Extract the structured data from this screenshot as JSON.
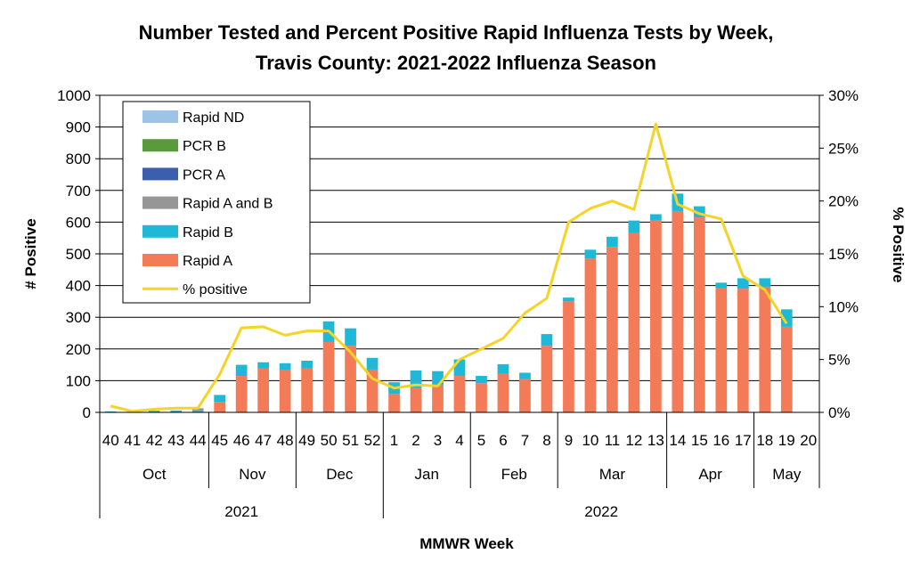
{
  "chart_data": {
    "type": "bar",
    "title_lines": [
      "Number Tested and Percent Positive Rapid Influenza Tests by Week,",
      "Travis County:  2021-2022 Influenza Season"
    ],
    "xlabel": "MMWR Week",
    "ylabel": "# Positive",
    "y2label": "% Positive",
    "ylim": [
      0,
      1000
    ],
    "y_ticks": [
      "0",
      "100",
      "200",
      "300",
      "400",
      "500",
      "600",
      "700",
      "800",
      "900",
      "1000"
    ],
    "y2lim": [
      0,
      30
    ],
    "y2_ticks": [
      "0%",
      "5%",
      "10%",
      "15%",
      "20%",
      "25%",
      "30%"
    ],
    "grid": true,
    "legend_position": "top-left",
    "categories": [
      "40",
      "41",
      "42",
      "43",
      "44",
      "45",
      "46",
      "47",
      "48",
      "49",
      "50",
      "51",
      "52",
      "1",
      "2",
      "3",
      "4",
      "5",
      "6",
      "7",
      "8",
      "9",
      "10",
      "11",
      "12",
      "13",
      "14",
      "15",
      "16",
      "17",
      "18",
      "19",
      "20"
    ],
    "months": [
      {
        "label": "Oct",
        "span": 5
      },
      {
        "label": "Nov",
        "span": 4
      },
      {
        "label": "Dec",
        "span": 4
      },
      {
        "label": "Jan",
        "span": 4
      },
      {
        "label": "Feb",
        "span": 4
      },
      {
        "label": "Mar",
        "span": 5
      },
      {
        "label": "Apr",
        "span": 4
      },
      {
        "label": "May",
        "span": 3
      }
    ],
    "years": [
      {
        "label": "2021",
        "span": 13
      },
      {
        "label": "2022",
        "span": 20
      }
    ],
    "series": [
      {
        "name": "Rapid A",
        "kind": "bar",
        "color": "#F47B57",
        "values": [
          0,
          0,
          0,
          0,
          0,
          33,
          115,
          138,
          133,
          138,
          222,
          210,
          135,
          58,
          77,
          85,
          115,
          92,
          122,
          105,
          210,
          350,
          485,
          522,
          565,
          605,
          635,
          615,
          392,
          390,
          395,
          270,
          0
        ]
      },
      {
        "name": "Rapid B",
        "kind": "bar",
        "color": "#1FB8D6",
        "values": [
          3,
          2,
          5,
          6,
          5,
          22,
          35,
          20,
          22,
          25,
          65,
          55,
          37,
          37,
          55,
          45,
          52,
          23,
          30,
          20,
          37,
          12,
          28,
          32,
          40,
          20,
          55,
          35,
          17,
          33,
          28,
          55,
          0
        ]
      },
      {
        "name": "Rapid A and B",
        "kind": "bar",
        "color": "#969696",
        "values": [
          0,
          0,
          0,
          0,
          8,
          0,
          0,
          0,
          0,
          0,
          0,
          0,
          0,
          0,
          0,
          0,
          0,
          0,
          0,
          0,
          0,
          0,
          0,
          0,
          0,
          0,
          0,
          0,
          0,
          0,
          0,
          0,
          0
        ]
      },
      {
        "name": "PCR A",
        "kind": "bar",
        "color": "#3B5FAD",
        "values": [
          0,
          0,
          0,
          0,
          0,
          0,
          0,
          0,
          0,
          0,
          0,
          0,
          0,
          0,
          0,
          0,
          0,
          0,
          0,
          0,
          0,
          0,
          0,
          0,
          0,
          0,
          0,
          0,
          0,
          0,
          0,
          0,
          0
        ]
      },
      {
        "name": "PCR B",
        "kind": "bar",
        "color": "#5B9A3B",
        "values": [
          0,
          0,
          0,
          0,
          0,
          0,
          0,
          0,
          0,
          0,
          0,
          0,
          0,
          0,
          0,
          0,
          0,
          0,
          0,
          0,
          0,
          0,
          0,
          0,
          0,
          0,
          0,
          0,
          0,
          0,
          0,
          0,
          0
        ]
      },
      {
        "name": "Rapid ND",
        "kind": "bar",
        "color": "#9DC3E6",
        "values": [
          0,
          0,
          0,
          0,
          0,
          0,
          0,
          0,
          0,
          0,
          0,
          0,
          0,
          0,
          0,
          0,
          0,
          0,
          0,
          0,
          0,
          0,
          0,
          0,
          0,
          0,
          0,
          0,
          0,
          0,
          0,
          0,
          0
        ]
      },
      {
        "name": "% positive",
        "kind": "line",
        "axis": "right",
        "color": "#F5D327",
        "values": [
          0.6,
          0.1,
          0.3,
          0.4,
          0.4,
          3.6,
          8.0,
          8.1,
          7.3,
          7.7,
          7.7,
          5.7,
          3.2,
          2.3,
          2.6,
          2.5,
          5.0,
          6.0,
          7.0,
          9.4,
          10.8,
          18.0,
          19.3,
          20.0,
          19.2,
          27.3,
          19.7,
          18.8,
          18.3,
          12.9,
          11.6,
          8.4,
          null
        ]
      }
    ],
    "legend_order": [
      "Rapid ND",
      "PCR B",
      "PCR A",
      "Rapid A and B",
      "Rapid B",
      "Rapid A",
      "% positive"
    ]
  }
}
